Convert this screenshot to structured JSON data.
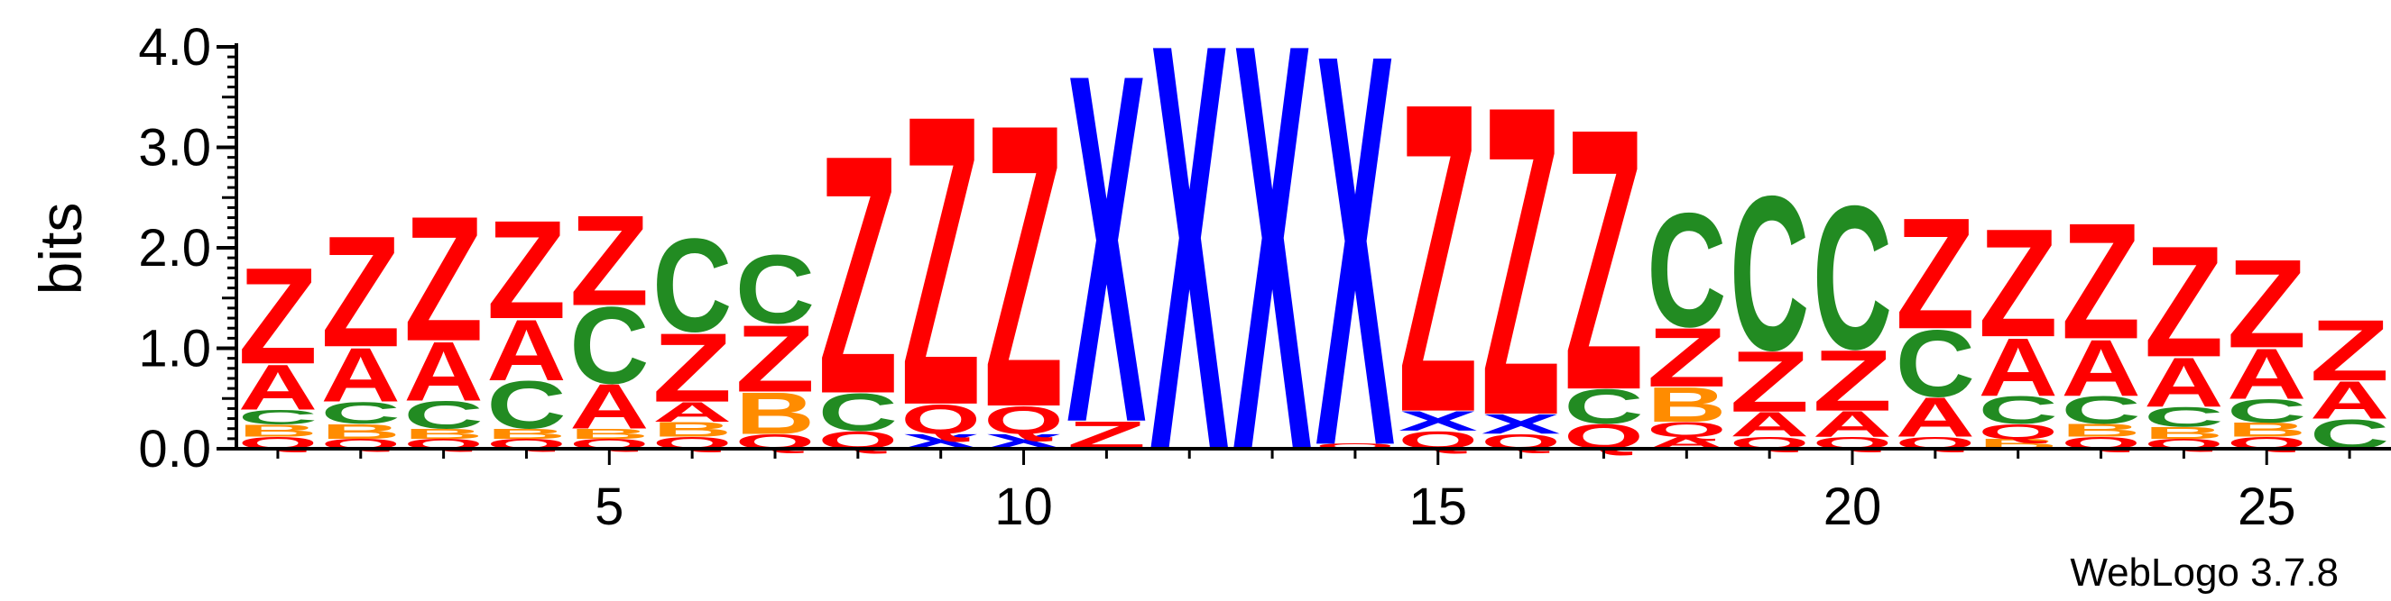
{
  "chart_data": {
    "type": "sequence-logo",
    "ylabel": "bits",
    "xlabel": "",
    "ylim": [
      0,
      4.0
    ],
    "y_ticks": [
      "0.0",
      "1.0",
      "2.0",
      "3.0",
      "4.0"
    ],
    "x_ticks": [
      "5",
      "10",
      "15",
      "20",
      "25"
    ],
    "x_tick_positions": [
      5,
      10,
      15,
      20,
      25
    ],
    "positions": 26,
    "colors": {
      "Z": "#ff0000",
      "A": "#ff0000",
      "Q": "#ff0000",
      "X": "#0000ff",
      "C": "#228b22",
      "B": "#ff8c00"
    },
    "stacks": [
      [
        [
          "Q",
          0.12
        ],
        [
          "B",
          0.12
        ],
        [
          "C",
          0.15
        ],
        [
          "A",
          0.46
        ],
        [
          "Z",
          0.98
        ]
      ],
      [
        [
          "Q",
          0.1
        ],
        [
          "B",
          0.15
        ],
        [
          "C",
          0.22
        ],
        [
          "A",
          0.55
        ],
        [
          "Z",
          1.13
        ]
      ],
      [
        [
          "Q",
          0.1
        ],
        [
          "B",
          0.1
        ],
        [
          "C",
          0.28
        ],
        [
          "A",
          0.6
        ],
        [
          "Z",
          1.27
        ]
      ],
      [
        [
          "Q",
          0.1
        ],
        [
          "B",
          0.1
        ],
        [
          "C",
          0.48
        ],
        [
          "A",
          0.62
        ],
        [
          "Z",
          1.0
        ]
      ],
      [
        [
          "Q",
          0.1
        ],
        [
          "B",
          0.1
        ],
        [
          "A",
          0.45
        ],
        [
          "C",
          0.78
        ],
        [
          "Z",
          0.92
        ]
      ],
      [
        [
          "Q",
          0.12
        ],
        [
          "B",
          0.15
        ],
        [
          "A",
          0.2
        ],
        [
          "Z",
          0.7
        ],
        [
          "C",
          0.95
        ]
      ],
      [
        [
          "Q",
          0.15
        ],
        [
          "B",
          0.42
        ],
        [
          "Z",
          0.68
        ],
        [
          "C",
          0.7
        ]
      ],
      [
        [
          "Q",
          0.18
        ],
        [
          "C",
          0.38
        ],
        [
          "Z",
          2.43
        ]
      ],
      [
        [
          "X",
          0.15
        ],
        [
          "Q",
          0.3
        ],
        [
          "Z",
          2.95
        ]
      ],
      [
        [
          "X",
          0.15
        ],
        [
          "Q",
          0.28
        ],
        [
          "Z",
          2.88
        ]
      ],
      [
        [
          "Z",
          0.28
        ],
        [
          "X",
          3.55
        ]
      ],
      [
        [
          "X",
          4.15
        ]
      ],
      [
        [
          "X",
          4.15
        ]
      ],
      [
        [
          "Q",
          0.05
        ],
        [
          "X",
          3.99
        ]
      ],
      [
        [
          "Q",
          0.18
        ],
        [
          "X",
          0.2
        ],
        [
          "Z",
          3.15
        ]
      ],
      [
        [
          "Q",
          0.15
        ],
        [
          "X",
          0.2
        ],
        [
          "Z",
          3.15
        ]
      ],
      [
        [
          "Q",
          0.25
        ],
        [
          "C",
          0.35
        ],
        [
          "Z",
          2.66
        ]
      ],
      [
        [
          "A",
          0.12
        ],
        [
          "Q",
          0.15
        ],
        [
          "B",
          0.35
        ],
        [
          "Z",
          0.6
        ],
        [
          "C",
          1.16
        ]
      ],
      [
        [
          "Q",
          0.12
        ],
        [
          "A",
          0.25
        ],
        [
          "Z",
          0.62
        ],
        [
          "C",
          1.57
        ]
      ],
      [
        [
          "Q",
          0.12
        ],
        [
          "A",
          0.26
        ],
        [
          "Z",
          0.62
        ],
        [
          "C",
          1.46
        ]
      ],
      [
        [
          "Q",
          0.12
        ],
        [
          "A",
          0.4
        ],
        [
          "C",
          0.68
        ],
        [
          "Z",
          1.13
        ]
      ],
      [
        [
          "B",
          0.1
        ],
        [
          "Q",
          0.15
        ],
        [
          "C",
          0.28
        ],
        [
          "A",
          0.59
        ],
        [
          "Z",
          1.1
        ]
      ],
      [
        [
          "Q",
          0.12
        ],
        [
          "B",
          0.13
        ],
        [
          "C",
          0.28
        ],
        [
          "A",
          0.57
        ],
        [
          "Z",
          1.18
        ]
      ],
      [
        [
          "Q",
          0.1
        ],
        [
          "B",
          0.12
        ],
        [
          "C",
          0.2
        ],
        [
          "A",
          0.5
        ],
        [
          "Z",
          1.13
        ]
      ],
      [
        [
          "Q",
          0.12
        ],
        [
          "B",
          0.14
        ],
        [
          "C",
          0.24
        ],
        [
          "A",
          0.51
        ],
        [
          "Z",
          0.9
        ]
      ],
      [
        [
          "C",
          0.3
        ],
        [
          "A",
          0.38
        ],
        [
          "Z",
          0.62
        ]
      ]
    ]
  },
  "credit": "WebLogo 3.7.8"
}
